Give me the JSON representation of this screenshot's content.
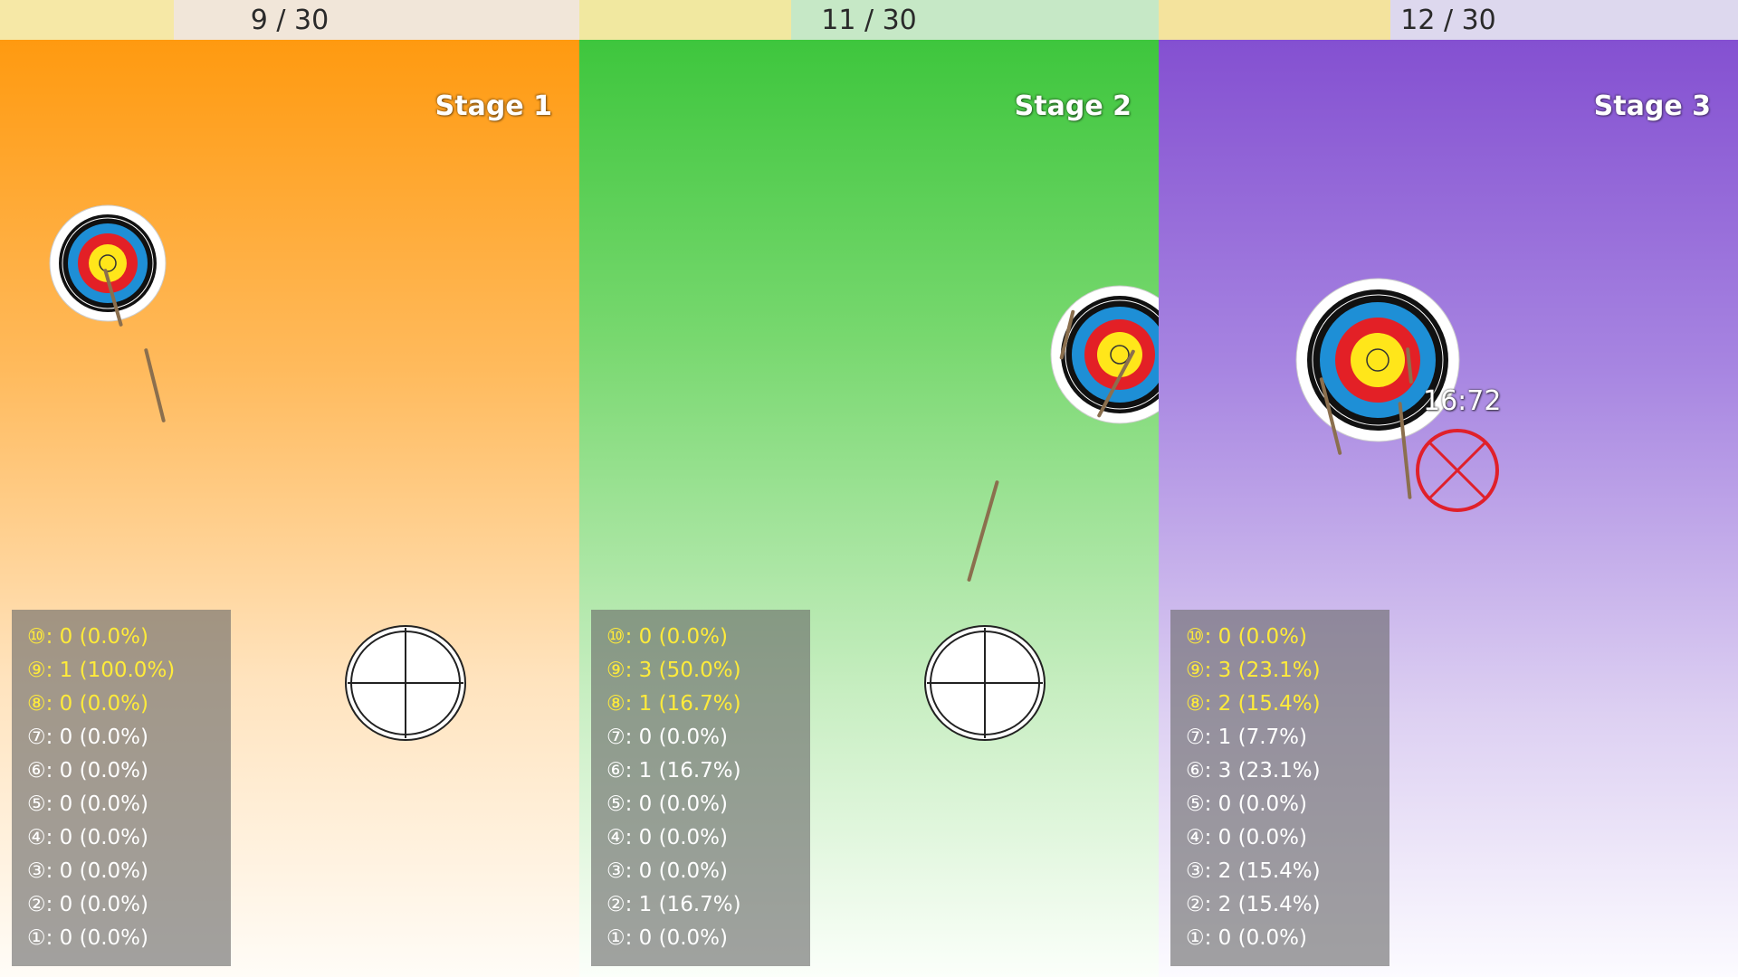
{
  "colors": {
    "stage1_accent": "#ff9a10",
    "stage2_accent": "#3ec63d",
    "stage3_accent": "#8450d1",
    "highlight_score_text": "#ffeb3a",
    "miss_marker": "#e0202a"
  },
  "stages": [
    {
      "counter": "9 / 30",
      "title": "Stage 1",
      "stats": [
        "⑩: 0 (0.0%)",
        "⑨: 1 (100.0%)",
        "⑧: 0 (0.0%)",
        "⑦: 0 (0.0%)",
        "⑥: 0 (0.0%)",
        "⑤: 0 (0.0%)",
        "④: 0 (0.0%)",
        "③: 0 (0.0%)",
        "②: 0 (0.0%)",
        "①: 0 (0.0%)"
      ]
    },
    {
      "counter": "11 / 30",
      "title": "Stage 2",
      "stats": [
        "⑩: 0 (0.0%)",
        "⑨: 3 (50.0%)",
        "⑧: 1 (16.7%)",
        "⑦: 0 (0.0%)",
        "⑥: 1 (16.7%)",
        "⑤: 0 (0.0%)",
        "④: 0 (0.0%)",
        "③: 0 (0.0%)",
        "②: 1 (16.7%)",
        "①: 0 (0.0%)"
      ]
    },
    {
      "counter": "12 / 30",
      "title": "Stage 3",
      "timer": "16:72",
      "stats": [
        "⑩: 0 (0.0%)",
        "⑨: 3 (23.1%)",
        "⑧: 2 (15.4%)",
        "⑦: 1 (7.7%)",
        "⑥: 3 (23.1%)",
        "⑤: 0 (0.0%)",
        "④: 0 (0.0%)",
        "③: 2 (15.4%)",
        "②: 2 (15.4%)",
        "①: 0 (0.0%)"
      ]
    }
  ],
  "icons": {
    "target": "archery-target-icon",
    "crosshair": "crosshair-icon",
    "arrow": "arrow-shaft-icon",
    "miss": "miss-marker-icon"
  }
}
